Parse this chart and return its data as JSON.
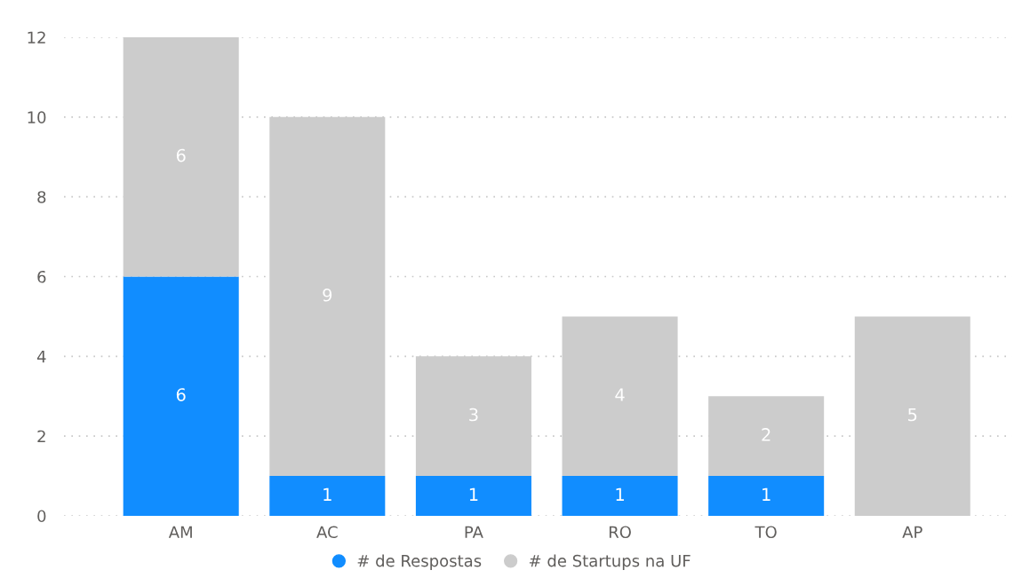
{
  "chart_data": {
    "type": "bar",
    "stacked": true,
    "categories": [
      "AM",
      "AC",
      "PA",
      "RO",
      "TO",
      "AP"
    ],
    "series": [
      {
        "name": "# de Respostas",
        "color": "#118dff",
        "values": [
          6,
          1,
          1,
          1,
          1,
          0
        ],
        "value_labels": [
          "6",
          "1",
          "1",
          "1",
          "1",
          null
        ]
      },
      {
        "name": "# de Startups na UF",
        "color": "#cccccc",
        "values": [
          6,
          9,
          3,
          4,
          2,
          5
        ],
        "value_labels": [
          "6",
          "9",
          "3",
          "4",
          "2",
          "5"
        ]
      }
    ],
    "ylim": [
      0,
      12
    ],
    "yticks": [
      0,
      2,
      4,
      6,
      8,
      10,
      12
    ],
    "grid": "y",
    "legend": "bottom"
  }
}
